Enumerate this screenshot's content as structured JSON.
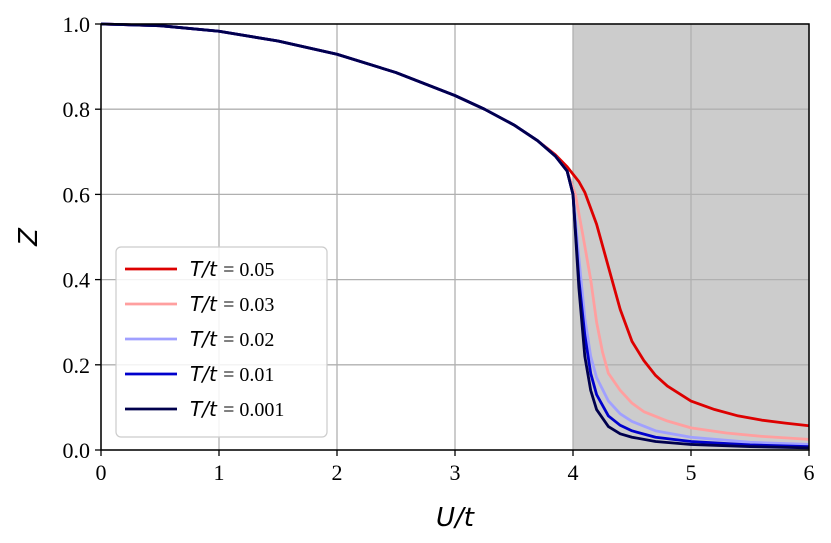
{
  "chart_data": {
    "type": "line",
    "xlabel": "U/t",
    "ylabel": "Z",
    "xlim": [
      0,
      6
    ],
    "ylim": [
      0,
      1.0
    ],
    "xticks": [
      "0",
      "1",
      "2",
      "3",
      "4",
      "5",
      "6"
    ],
    "yticks": [
      "0.0",
      "0.2",
      "0.4",
      "0.6",
      "0.8",
      "1.0"
    ],
    "grid": true,
    "legend_position": "lower-left",
    "shaded_region": {
      "x_from": 4,
      "x_to": 6,
      "color": "#cccccc"
    },
    "series": [
      {
        "name": "T/t = 0.05",
        "name_var": "T/t",
        "name_val": "= 0.05",
        "color": "#dd0000",
        "x": [
          0,
          0.5,
          1,
          1.5,
          2,
          2.5,
          3,
          3.25,
          3.5,
          3.7,
          3.85,
          3.95,
          4.05,
          4.1,
          4.2,
          4.3,
          4.4,
          4.5,
          4.6,
          4.7,
          4.8,
          5.0,
          5.2,
          5.4,
          5.6,
          5.8,
          6.0
        ],
        "y": [
          1.0,
          0.996,
          0.983,
          0.96,
          0.929,
          0.886,
          0.832,
          0.8,
          0.763,
          0.726,
          0.693,
          0.665,
          0.63,
          0.605,
          0.53,
          0.43,
          0.33,
          0.255,
          0.21,
          0.175,
          0.15,
          0.115,
          0.095,
          0.08,
          0.07,
          0.063,
          0.057
        ]
      },
      {
        "name": "T/t = 0.03",
        "name_var": "T/t",
        "name_val": "= 0.03",
        "color": "#ff9f9f",
        "x": [
          0,
          0.5,
          1,
          1.5,
          2,
          2.5,
          3,
          3.25,
          3.5,
          3.7,
          3.85,
          3.95,
          4.02,
          4.08,
          4.15,
          4.2,
          4.25,
          4.3,
          4.4,
          4.5,
          4.6,
          4.8,
          5.0,
          5.3,
          5.6,
          6.0
        ],
        "y": [
          1.0,
          0.996,
          0.983,
          0.96,
          0.929,
          0.886,
          0.832,
          0.8,
          0.763,
          0.726,
          0.69,
          0.655,
          0.6,
          0.51,
          0.4,
          0.3,
          0.23,
          0.18,
          0.14,
          0.11,
          0.09,
          0.068,
          0.052,
          0.04,
          0.032,
          0.025
        ]
      },
      {
        "name": "T/t = 0.02",
        "name_var": "T/t",
        "name_val": "= 0.02",
        "color": "#a0a0ff",
        "x": [
          0,
          0.5,
          1,
          1.5,
          2,
          2.5,
          3,
          3.25,
          3.5,
          3.7,
          3.85,
          3.95,
          4.0,
          4.05,
          4.1,
          4.15,
          4.2,
          4.3,
          4.4,
          4.5,
          4.7,
          5.0,
          5.5,
          6.0
        ],
        "y": [
          1.0,
          0.996,
          0.983,
          0.96,
          0.929,
          0.886,
          0.832,
          0.8,
          0.763,
          0.726,
          0.69,
          0.655,
          0.6,
          0.45,
          0.31,
          0.22,
          0.17,
          0.115,
          0.085,
          0.067,
          0.045,
          0.03,
          0.018,
          0.013
        ]
      },
      {
        "name": "T/t = 0.01",
        "name_var": "T/t",
        "name_val": "= 0.01",
        "color": "#0000cc",
        "x": [
          0,
          0.5,
          1,
          1.5,
          2,
          2.5,
          3,
          3.25,
          3.5,
          3.7,
          3.85,
          3.95,
          4.0,
          4.05,
          4.1,
          4.15,
          4.2,
          4.3,
          4.4,
          4.5,
          4.7,
          5.0,
          5.5,
          6.0
        ],
        "y": [
          1.0,
          0.996,
          0.983,
          0.96,
          0.929,
          0.886,
          0.832,
          0.8,
          0.763,
          0.726,
          0.69,
          0.655,
          0.6,
          0.4,
          0.27,
          0.18,
          0.13,
          0.08,
          0.058,
          0.045,
          0.03,
          0.02,
          0.012,
          0.008
        ]
      },
      {
        "name": "T/t = 0.001",
        "name_var": "T/t",
        "name_val": "= 0.001",
        "color": "#00004d",
        "x": [
          0,
          0.5,
          1,
          1.5,
          2,
          2.5,
          3,
          3.25,
          3.5,
          3.7,
          3.85,
          3.95,
          4.0,
          4.05,
          4.1,
          4.15,
          4.2,
          4.3,
          4.4,
          4.5,
          4.7,
          5.0,
          5.5,
          6.0
        ],
        "y": [
          1.0,
          0.996,
          0.983,
          0.96,
          0.929,
          0.886,
          0.832,
          0.8,
          0.763,
          0.726,
          0.69,
          0.655,
          0.6,
          0.38,
          0.22,
          0.14,
          0.095,
          0.055,
          0.038,
          0.03,
          0.02,
          0.013,
          0.008,
          0.005
        ]
      }
    ]
  }
}
